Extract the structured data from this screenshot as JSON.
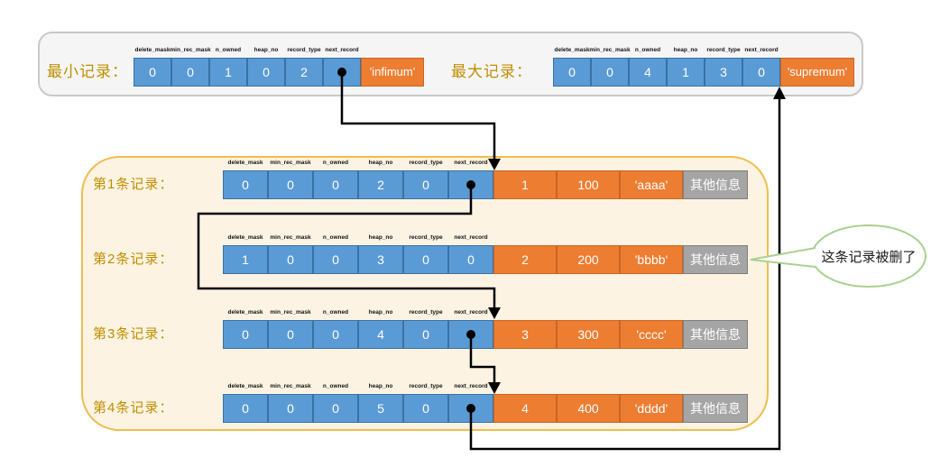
{
  "field_headers": [
    "delete_mask",
    "min_rec_mask",
    "n_owned",
    "heap_no",
    "record_type",
    "next_record"
  ],
  "system_records": [
    {
      "id": "min-record",
      "label": "最小记录：",
      "values": [
        "0",
        "0",
        "1",
        "0",
        "2",
        ""
      ],
      "tail": "'infimum'"
    },
    {
      "id": "max-record",
      "label": "最大记录：",
      "values": [
        "0",
        "0",
        "4",
        "1",
        "3",
        "0"
      ],
      "tail": "'supremum'"
    }
  ],
  "user_records": [
    {
      "id": "record-1",
      "label": "第1条记录：",
      "header_values": [
        "0",
        "0",
        "0",
        "2",
        "0",
        ""
      ],
      "data_values": [
        "1",
        "100",
        "'aaaa'"
      ],
      "other_info": "其他信息"
    },
    {
      "id": "record-2",
      "label": "第2条记录：",
      "header_values": [
        "1",
        "0",
        "0",
        "3",
        "0",
        "0"
      ],
      "data_values": [
        "2",
        "200",
        "'bbbb'"
      ],
      "other_info": "其他信息"
    },
    {
      "id": "record-3",
      "label": "第3条记录：",
      "header_values": [
        "0",
        "0",
        "0",
        "4",
        "0",
        ""
      ],
      "data_values": [
        "3",
        "300",
        "'cccc'"
      ],
      "other_info": "其他信息"
    },
    {
      "id": "record-4",
      "label": "第4条记录：",
      "header_values": [
        "0",
        "0",
        "0",
        "5",
        "0",
        ""
      ],
      "data_values": [
        "4",
        "400",
        "'dddd'"
      ],
      "other_info": "其他信息"
    }
  ],
  "callout": {
    "text": "这条记录被删了"
  },
  "links": [
    {
      "from": "最小记录",
      "to": "第1条记录"
    },
    {
      "from": "第1条记录",
      "to": "第3条记录"
    },
    {
      "from": "第3条记录",
      "to": "第4条记录"
    },
    {
      "from": "第4条记录",
      "to": "最大记录"
    }
  ],
  "colors": {
    "cell_blue": "#5B9BD5",
    "cell_orange": "#ED7D31",
    "cell_gray": "#A5A5A5",
    "label_gold": "#BF8F00",
    "cream_fill": "#FCF3E2",
    "cream_border": "#EEBE4D",
    "gray_box_fill": "#F5F5F6",
    "gray_box_border": "#C8C8C8",
    "callout_green": "#A9D18E",
    "arrow_black": "#000000"
  }
}
